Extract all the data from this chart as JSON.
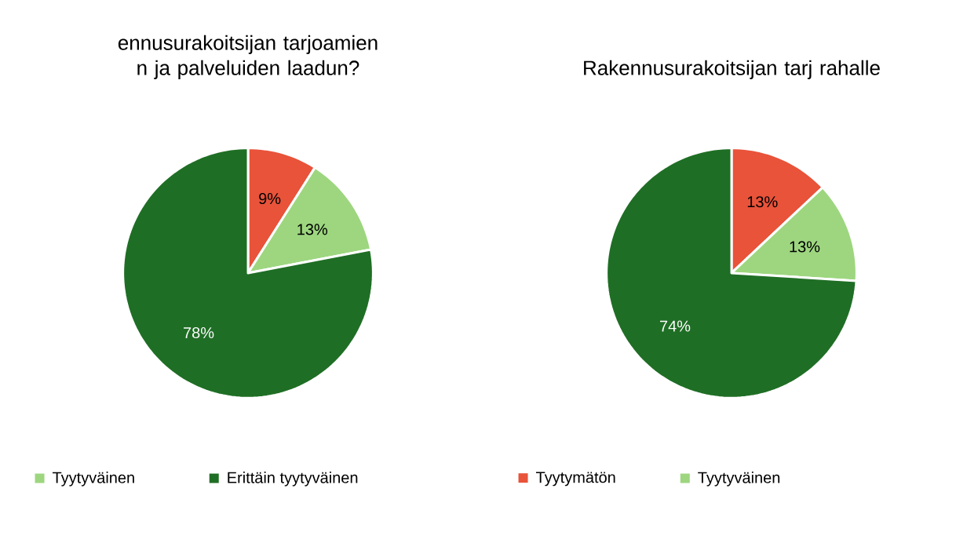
{
  "chart_data": [
    {
      "type": "pie",
      "title": "ennusurakoitsijan tarjoamien n ja palveluiden laadun?",
      "categories": [
        null,
        "Tyytyväinen",
        "Erittäin tyytyväinen"
      ],
      "values": [
        9,
        13,
        78
      ],
      "colors": [
        "#e8533a",
        "#9dd67f",
        "#1f6e25"
      ],
      "value_labels": [
        "9%",
        "13%",
        "78%"
      ],
      "legend": "bottom"
    },
    {
      "type": "pie",
      "title": "Rakennusurakoitsijan tarj rahalle",
      "categories": [
        "Tyytymätön",
        "Tyytyväinen",
        null
      ],
      "values": [
        13,
        13,
        74
      ],
      "colors": [
        "#e8533a",
        "#9dd67f",
        "#1f6e25"
      ],
      "value_labels": [
        "13%",
        "13%",
        "74%"
      ],
      "legend": "bottom"
    }
  ]
}
